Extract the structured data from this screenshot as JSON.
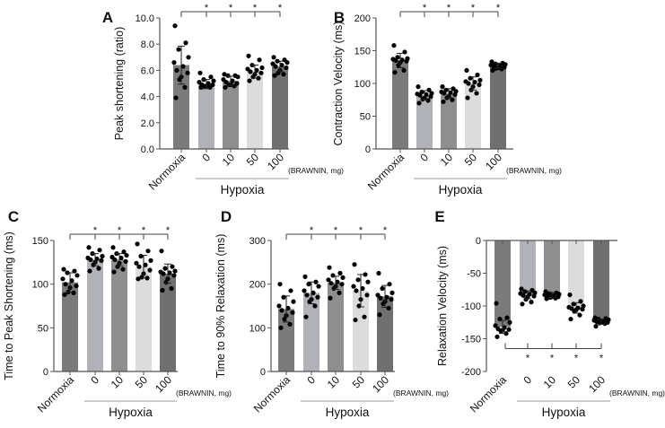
{
  "chart_data": [
    {
      "panel": "A",
      "type": "bar",
      "ylabel": "Peak shortening (ratio)",
      "ylim": [
        0,
        10
      ],
      "yticks": [
        "0.0",
        "2.0",
        "4.0",
        "6.0",
        "8.0",
        "10.0"
      ],
      "categories": [
        "Normoxia",
        "0",
        "10",
        "50",
        "100"
      ],
      "group_label": "Hypoxia",
      "dose_note": "(BRAWNIN, mg)",
      "significance": [
        "*",
        "*",
        "*",
        "*"
      ],
      "colors": [
        "#7b7b7b",
        "#b1b1b8",
        "#8f8f8f",
        "#dcdcdc",
        "#707070"
      ],
      "means": [
        6.4,
        4.95,
        5.2,
        5.9,
        6.3
      ],
      "sd": [
        1.45,
        0.35,
        0.35,
        0.5,
        0.4
      ],
      "points": [
        [
          9.4,
          8.1,
          7.6,
          7.0,
          6.6,
          6.3,
          6.0,
          5.8,
          5.5,
          5.3,
          4.7,
          3.9
        ],
        [
          5.8,
          5.5,
          5.3,
          5.2,
          5.1,
          5.0,
          4.9,
          4.9,
          4.8,
          4.8,
          4.7,
          4.7
        ],
        [
          5.7,
          5.6,
          5.6,
          5.5,
          5.3,
          5.2,
          5.1,
          5.0,
          4.9,
          4.9,
          4.8,
          4.7
        ],
        [
          7.1,
          6.8,
          6.4,
          6.2,
          6.1,
          6.0,
          5.9,
          5.8,
          5.7,
          5.5,
          5.4,
          5.2
        ],
        [
          7.0,
          6.8,
          6.7,
          6.6,
          6.5,
          6.4,
          6.3,
          6.2,
          6.0,
          5.8,
          5.7,
          5.6
        ]
      ]
    },
    {
      "panel": "B",
      "type": "bar",
      "ylabel": "Contraction Velocity (ms)",
      "ylim": [
        0,
        200
      ],
      "yticks": [
        "0",
        "50",
        "100",
        "150",
        "200"
      ],
      "categories": [
        "Normoxia",
        "0",
        "10",
        "50",
        "100"
      ],
      "group_label": "Hypoxia",
      "dose_note": "(BRAWNIN, mg)",
      "significance": [
        "*",
        "*",
        "*",
        "*"
      ],
      "colors": [
        "#7b7b7b",
        "#b1b1b8",
        "#8f8f8f",
        "#dcdcdc",
        "#707070"
      ],
      "means": [
        135,
        82,
        85,
        100,
        127
      ],
      "sd": [
        11,
        7,
        7,
        10,
        4
      ],
      "points": [
        [
          158,
          148,
          140,
          138,
          137,
          136,
          135,
          134,
          132,
          128,
          120,
          117
        ],
        [
          95,
          90,
          87,
          85,
          84,
          83,
          82,
          80,
          78,
          76,
          74,
          70
        ],
        [
          95,
          92,
          90,
          88,
          87,
          86,
          85,
          83,
          80,
          78,
          75,
          72
        ],
        [
          120,
          113,
          108,
          105,
          103,
          102,
          100,
          98,
          95,
          90,
          85,
          78
        ],
        [
          133,
          131,
          130,
          129,
          128,
          127,
          126,
          125,
          124,
          123,
          122,
          120
        ]
      ]
    },
    {
      "panel": "C",
      "type": "bar",
      "ylabel": "Time to Peak Shortening (ms)",
      "ylim": [
        0,
        150
      ],
      "yticks": [
        "0",
        "50",
        "100",
        "150"
      ],
      "categories": [
        "Normoxia",
        "0",
        "10",
        "50",
        "100"
      ],
      "group_label": "Hypoxia",
      "dose_note": "(BRAWNIN, mg)",
      "significance": [
        "*",
        "*",
        "*",
        "*"
      ],
      "colors": [
        "#7b7b7b",
        "#b1b1b8",
        "#8f8f8f",
        "#dcdcdc",
        "#707070"
      ],
      "means": [
        102,
        128,
        128,
        120,
        112
      ],
      "sd": [
        11,
        7,
        7,
        13,
        11
      ],
      "points": [
        [
          117,
          115,
          113,
          110,
          106,
          104,
          100,
          98,
          96,
          91,
          90,
          88
        ],
        [
          142,
          139,
          135,
          132,
          130,
          129,
          128,
          127,
          125,
          122,
          118,
          115
        ],
        [
          142,
          137,
          135,
          133,
          131,
          130,
          128,
          126,
          124,
          120,
          117,
          114
        ],
        [
          146,
          138,
          132,
          127,
          124,
          122,
          120,
          116,
          112,
          108,
          107,
          106
        ],
        [
          138,
          120,
          118,
          115,
          114,
          113,
          112,
          110,
          106,
          102,
          95,
          93
        ]
      ]
    },
    {
      "panel": "D",
      "type": "bar",
      "ylabel": "Time to 90% Relaxation (ms)",
      "ylim": [
        0,
        300
      ],
      "yticks": [
        "0",
        "100",
        "200",
        "300"
      ],
      "categories": [
        "Normoxia",
        "0",
        "10",
        "50",
        "100"
      ],
      "group_label": "Hypoxia",
      "dose_note": "(BRAWNIN, mg)",
      "significance": [
        "*",
        "*",
        "*",
        "*"
      ],
      "colors": [
        "#7b7b7b",
        "#b1b1b8",
        "#8f8f8f",
        "#dcdcdc",
        "#707070"
      ],
      "means": [
        143,
        180,
        203,
        185,
        172
      ],
      "sd": [
        30,
        25,
        15,
        37,
        25
      ],
      "points": [
        [
          200,
          185,
          170,
          160,
          150,
          145,
          140,
          135,
          128,
          120,
          108,
          100
        ],
        [
          217,
          205,
          200,
          195,
          185,
          180,
          175,
          170,
          165,
          160,
          150,
          125
        ],
        [
          238,
          225,
          220,
          215,
          210,
          205,
          202,
          200,
          195,
          190,
          180,
          168
        ],
        [
          245,
          222,
          210,
          205,
          195,
          190,
          185,
          175,
          165,
          150,
          125,
          118
        ],
        [
          225,
          200,
          190,
          180,
          175,
          170,
          168,
          165,
          160,
          155,
          145,
          130
        ]
      ]
    },
    {
      "panel": "E",
      "type": "bar",
      "ylabel": "Relaxation Velocity (ms)",
      "ylim": [
        -200,
        0
      ],
      "yticks": [
        "-200",
        "-150",
        "-100",
        "-50",
        "0"
      ],
      "categories": [
        "Normoxia",
        "0",
        "10",
        "50",
        "100"
      ],
      "group_label": "Hypoxia",
      "dose_note": "(BRAWNIN, mg)",
      "significance": [
        "*",
        "*",
        "*",
        "*"
      ],
      "colors": [
        "#7b7b7b",
        "#b1b1b8",
        "#8f8f8f",
        "#dcdcdc",
        "#707070"
      ],
      "means": [
        -132,
        -83,
        -83,
        -103,
        -124
      ],
      "sd": [
        10,
        6,
        4,
        8,
        4
      ],
      "points": [
        [
          -96,
          -118,
          -120,
          -125,
          -130,
          -133,
          -135,
          -136,
          -137,
          -138,
          -142,
          -147
        ],
        [
          -74,
          -76,
          -78,
          -80,
          -81,
          -82,
          -84,
          -85,
          -86,
          -90,
          -94,
          -97
        ],
        [
          -78,
          -80,
          -81,
          -82,
          -83,
          -84,
          -85,
          -86,
          -86,
          -87,
          -88,
          -89
        ],
        [
          -83,
          -93,
          -97,
          -100,
          -102,
          -103,
          -104,
          -105,
          -106,
          -108,
          -114,
          -120
        ],
        [
          -118,
          -119,
          -120,
          -121,
          -122,
          -123,
          -124,
          -125,
          -125,
          -126,
          -127,
          -131
        ]
      ]
    }
  ]
}
